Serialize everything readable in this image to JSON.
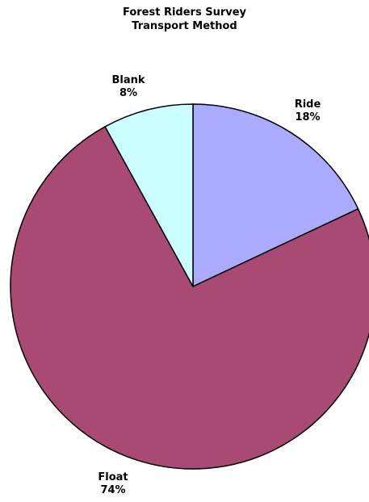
{
  "chart_data": {
    "type": "pie",
    "title": [
      "Forest Riders Survey",
      "Transport Method"
    ],
    "categories": [
      "Ride",
      "Float",
      "Blank"
    ],
    "values": [
      18,
      74,
      8
    ],
    "labels": [
      "18%",
      "74%",
      "8%"
    ],
    "colors": [
      "#aaaaff",
      "#a84a74",
      "#ccffff"
    ],
    "start": "top",
    "direction": "clockwise",
    "legend": "none"
  }
}
